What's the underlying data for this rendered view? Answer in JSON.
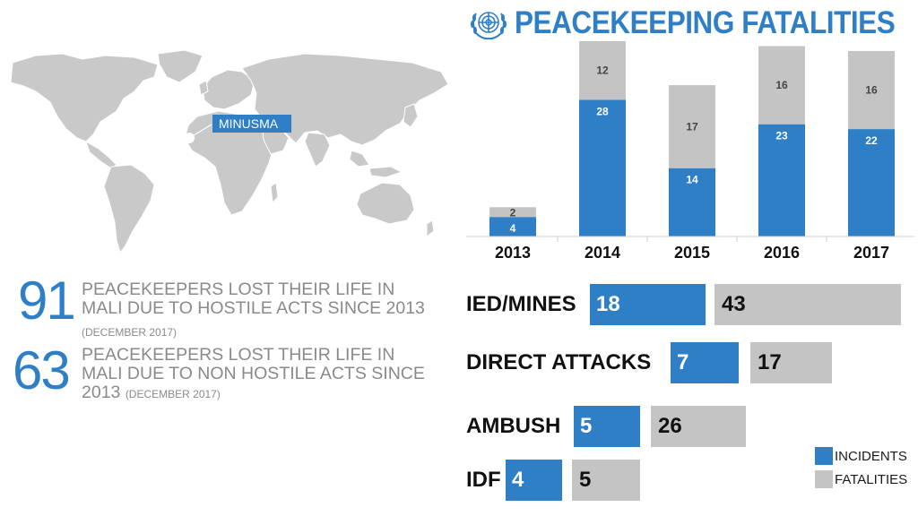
{
  "title": "PEACEKEEPING FATALITIES",
  "map": {
    "mission_label": "MINUSMA"
  },
  "stats": [
    {
      "number": "91",
      "text_line1": "PEACEKEEPERS LOST THEIR LIFE IN",
      "text_line2": "MALI DUE TO HOSTILE ACTS SINCE 2013",
      "note": "(DECEMBER 2017)"
    },
    {
      "number": "63",
      "text_line1": "PEACEKEEPERS LOST THEIR LIFE IN",
      "text_line2": "MALI DUE TO NON HOSTILE ACTS SINCE",
      "text_line3": "2013",
      "note": "(DECEMBER 2017)"
    }
  ],
  "legend": {
    "incidents": "INCIDENTS",
    "fatalities": "FATALITIES"
  },
  "colors": {
    "incidents": "#2f7fc7",
    "fatalities": "#c4c4c4",
    "map_land": "#c9c9c9"
  },
  "chart_data": [
    {
      "type": "bar",
      "stacked": true,
      "categories": [
        "2013",
        "2014",
        "2015",
        "2016",
        "2017"
      ],
      "series": [
        {
          "name": "INCIDENTS",
          "values": [
            4,
            28,
            14,
            23,
            22
          ]
        },
        {
          "name": "FATALITIES",
          "values": [
            2,
            12,
            17,
            16,
            16
          ]
        }
      ],
      "grid": false
    },
    {
      "type": "bar",
      "orientation": "horizontal",
      "categories": [
        "IED/MINES",
        "DIRECT ATTACKS",
        "AMBUSH",
        "IDF"
      ],
      "series": [
        {
          "name": "INCIDENTS",
          "values": [
            18,
            7,
            5,
            4
          ]
        },
        {
          "name": "FATALITIES",
          "values": [
            43,
            17,
            26,
            5
          ]
        }
      ],
      "legend_position": "bottom-right"
    }
  ]
}
